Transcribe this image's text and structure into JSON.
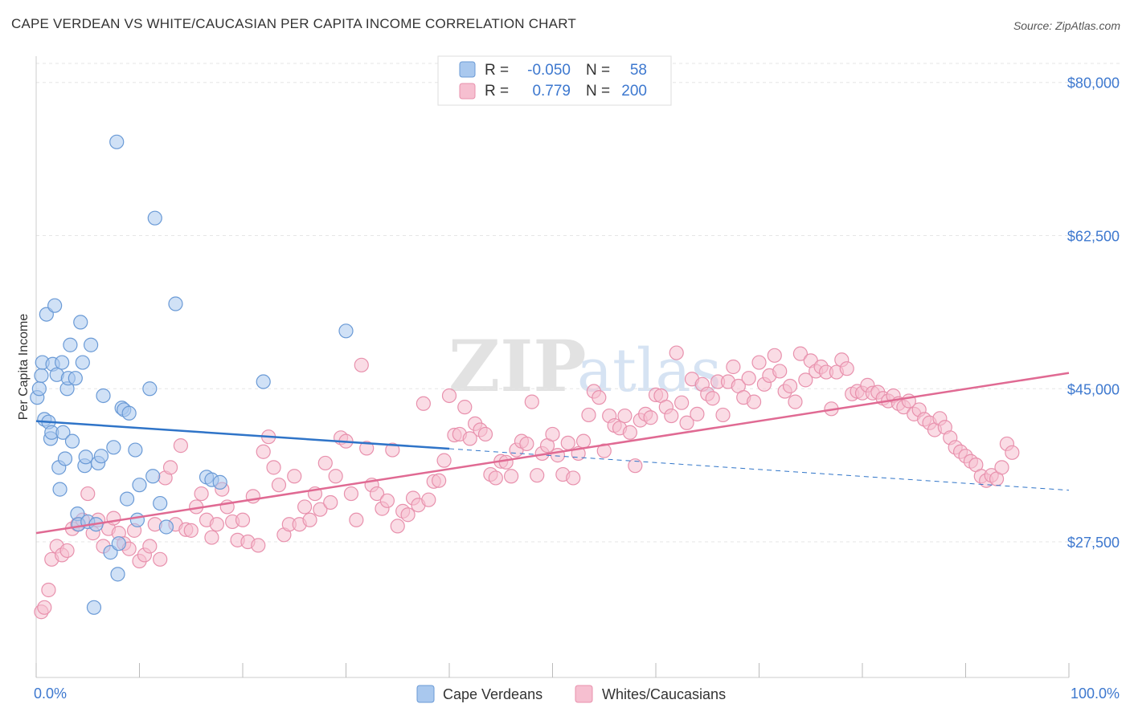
{
  "header": {
    "title": "CAPE VERDEAN VS WHITE/CAUCASIAN PER CAPITA INCOME CORRELATION CHART",
    "source": "Source: ZipAtlas.com"
  },
  "watermark": {
    "zip": "ZIP",
    "atlas": "atlas"
  },
  "colors": {
    "blue_fill": "#a9c8ee",
    "blue_stroke": "#6a9ad6",
    "blue_line": "#2f74c8",
    "pink_fill": "#f6bfd0",
    "pink_stroke": "#e891ad",
    "pink_line": "#e06a93",
    "grid": "#e6e6e6",
    "tick_text": "#3d78cf"
  },
  "legend": {
    "rows": [
      {
        "r_label": "R =",
        "r_value": "-0.050",
        "n_label": "N =",
        "n_value": "58"
      },
      {
        "r_label": "R =",
        "r_value": "0.779",
        "n_label": "N =",
        "n_value": "200"
      }
    ]
  },
  "bottom_legend": [
    "Cape Verdeans",
    "Whites/Caucasians"
  ],
  "chart_data": {
    "type": "scatter",
    "title": "CAPE VERDEAN VS WHITE/CAUCASIAN PER CAPITA INCOME CORRELATION CHART",
    "xlabel": "",
    "ylabel": "Per Capita Income",
    "xlim": [
      0,
      100
    ],
    "ylim": [
      12000,
      83000
    ],
    "x_tick_labels": [
      "0.0%",
      "100.0%"
    ],
    "y_ticks": [
      27500,
      45000,
      62500,
      80000
    ],
    "y_tick_labels": [
      "$27,500",
      "$45,000",
      "$62,500",
      "$80,000"
    ],
    "series": [
      {
        "name": "Cape Verdeans",
        "r": -0.05,
        "n": 58,
        "trend": {
          "x0": 0,
          "y0": 41300,
          "x1": 100,
          "y1": 33400,
          "solid_until": 40
        },
        "points": [
          [
            0.1,
            44000
          ],
          [
            0.3,
            45000
          ],
          [
            0.5,
            46500
          ],
          [
            0.6,
            48000
          ],
          [
            0.8,
            41500
          ],
          [
            1.0,
            53500
          ],
          [
            1.2,
            41200
          ],
          [
            1.4,
            39300
          ],
          [
            1.5,
            40000
          ],
          [
            1.6,
            47800
          ],
          [
            1.8,
            54500
          ],
          [
            2.0,
            46600
          ],
          [
            2.2,
            36000
          ],
          [
            2.3,
            33500
          ],
          [
            2.5,
            48000
          ],
          [
            2.6,
            40000
          ],
          [
            2.8,
            37000
          ],
          [
            3.0,
            45000
          ],
          [
            3.1,
            46200
          ],
          [
            3.3,
            50000
          ],
          [
            3.5,
            39000
          ],
          [
            3.8,
            46200
          ],
          [
            4.0,
            30700
          ],
          [
            4.1,
            29500
          ],
          [
            4.3,
            52600
          ],
          [
            4.5,
            48000
          ],
          [
            4.7,
            36200
          ],
          [
            4.8,
            37200
          ],
          [
            5.0,
            29800
          ],
          [
            5.3,
            50000
          ],
          [
            5.8,
            29500
          ],
          [
            6.0,
            36500
          ],
          [
            6.3,
            37300
          ],
          [
            6.5,
            44200
          ],
          [
            7.2,
            26300
          ],
          [
            7.5,
            38300
          ],
          [
            7.8,
            73200
          ],
          [
            7.9,
            23800
          ],
          [
            8.0,
            27300
          ],
          [
            8.3,
            42800
          ],
          [
            8.5,
            42600
          ],
          [
            8.8,
            32400
          ],
          [
            9.0,
            42200
          ],
          [
            9.8,
            30000
          ],
          [
            10.0,
            34000
          ],
          [
            11.0,
            45000
          ],
          [
            11.3,
            35000
          ],
          [
            11.5,
            64500
          ],
          [
            12.0,
            31900
          ],
          [
            12.6,
            29200
          ],
          [
            13.5,
            54700
          ],
          [
            16.5,
            34900
          ],
          [
            17.0,
            34600
          ],
          [
            17.8,
            34300
          ],
          [
            22.0,
            45800
          ],
          [
            30.0,
            51600
          ],
          [
            5.6,
            20000
          ],
          [
            9.6,
            38000
          ]
        ]
      },
      {
        "name": "Whites/Caucasians",
        "r": 0.779,
        "n": 200,
        "trend": {
          "x0": 0,
          "y0": 28500,
          "x1": 100,
          "y1": 46800
        },
        "points": [
          [
            0.5,
            19500
          ],
          [
            0.8,
            20000
          ],
          [
            1.2,
            22000
          ],
          [
            1.5,
            25500
          ],
          [
            2.0,
            27000
          ],
          [
            2.5,
            26000
          ],
          [
            3.0,
            26500
          ],
          [
            3.5,
            29000
          ],
          [
            4.0,
            29500
          ],
          [
            4.5,
            30000
          ],
          [
            5.0,
            33000
          ],
          [
            5.5,
            28500
          ],
          [
            6.0,
            30000
          ],
          [
            6.5,
            27000
          ],
          [
            7.0,
            29000
          ],
          [
            7.5,
            30200
          ],
          [
            8.0,
            28500
          ],
          [
            8.5,
            27300
          ],
          [
            9.0,
            26700
          ],
          [
            9.5,
            28800
          ],
          [
            10.0,
            25300
          ],
          [
            10.5,
            26000
          ],
          [
            11.0,
            27000
          ],
          [
            11.5,
            29500
          ],
          [
            12.0,
            25500
          ],
          [
            12.5,
            34800
          ],
          [
            13.0,
            36000
          ],
          [
            13.5,
            29500
          ],
          [
            14.0,
            38500
          ],
          [
            14.5,
            28900
          ],
          [
            15.0,
            28800
          ],
          [
            15.5,
            31500
          ],
          [
            16.0,
            33000
          ],
          [
            16.5,
            30000
          ],
          [
            17.0,
            28000
          ],
          [
            17.5,
            29500
          ],
          [
            18.0,
            33500
          ],
          [
            18.5,
            31500
          ],
          [
            19.0,
            29800
          ],
          [
            19.5,
            27700
          ],
          [
            20.0,
            30000
          ],
          [
            20.5,
            27500
          ],
          [
            21.0,
            32700
          ],
          [
            21.5,
            27100
          ],
          [
            22.0,
            37800
          ],
          [
            22.5,
            39500
          ],
          [
            23.0,
            36000
          ],
          [
            23.5,
            34000
          ],
          [
            24.0,
            28300
          ],
          [
            24.5,
            29500
          ],
          [
            25.0,
            35000
          ],
          [
            25.5,
            29500
          ],
          [
            26.0,
            31500
          ],
          [
            26.5,
            30000
          ],
          [
            27.0,
            33000
          ],
          [
            27.5,
            31200
          ],
          [
            28.0,
            36500
          ],
          [
            28.5,
            32000
          ],
          [
            29.0,
            35000
          ],
          [
            29.5,
            39400
          ],
          [
            30.0,
            39000
          ],
          [
            30.5,
            33000
          ],
          [
            31.0,
            30000
          ],
          [
            31.5,
            47700
          ],
          [
            32.0,
            38200
          ],
          [
            32.5,
            34000
          ],
          [
            33.0,
            33000
          ],
          [
            33.5,
            31300
          ],
          [
            34.0,
            32200
          ],
          [
            34.5,
            38000
          ],
          [
            35.0,
            29300
          ],
          [
            35.5,
            31000
          ],
          [
            36.0,
            30600
          ],
          [
            36.5,
            32500
          ],
          [
            37.0,
            31700
          ],
          [
            37.5,
            43300
          ],
          [
            38.0,
            32300
          ],
          [
            38.5,
            34400
          ],
          [
            39.0,
            34500
          ],
          [
            39.5,
            36800
          ],
          [
            40.0,
            44200
          ],
          [
            40.5,
            39700
          ],
          [
            41.0,
            39800
          ],
          [
            41.5,
            42900
          ],
          [
            42.0,
            39300
          ],
          [
            42.5,
            41000
          ],
          [
            43.0,
            40300
          ],
          [
            43.5,
            39800
          ],
          [
            44.0,
            35200
          ],
          [
            44.5,
            34800
          ],
          [
            45.0,
            36700
          ],
          [
            45.5,
            36600
          ],
          [
            46.0,
            35000
          ],
          [
            46.5,
            38000
          ],
          [
            47.0,
            39000
          ],
          [
            47.5,
            38700
          ],
          [
            48.0,
            43500
          ],
          [
            48.5,
            35100
          ],
          [
            49.0,
            37600
          ],
          [
            49.5,
            38500
          ],
          [
            50.0,
            39800
          ],
          [
            50.5,
            37400
          ],
          [
            51.0,
            35200
          ],
          [
            51.5,
            38800
          ],
          [
            52.0,
            34800
          ],
          [
            52.5,
            37600
          ],
          [
            53.0,
            39000
          ],
          [
            53.5,
            42000
          ],
          [
            54.0,
            44700
          ],
          [
            54.5,
            44000
          ],
          [
            55.0,
            37900
          ],
          [
            55.5,
            41900
          ],
          [
            56.0,
            40800
          ],
          [
            56.5,
            40500
          ],
          [
            57.0,
            41900
          ],
          [
            57.5,
            40000
          ],
          [
            58.0,
            36200
          ],
          [
            58.5,
            41400
          ],
          [
            59.0,
            42100
          ],
          [
            59.5,
            41700
          ],
          [
            60.0,
            44300
          ],
          [
            60.5,
            44200
          ],
          [
            61.0,
            42900
          ],
          [
            61.5,
            41900
          ],
          [
            62.0,
            49100
          ],
          [
            62.5,
            43400
          ],
          [
            63.0,
            41100
          ],
          [
            63.5,
            46100
          ],
          [
            64.0,
            42100
          ],
          [
            64.5,
            45500
          ],
          [
            65.0,
            44400
          ],
          [
            65.5,
            43900
          ],
          [
            66.0,
            45800
          ],
          [
            66.5,
            42000
          ],
          [
            67.0,
            45800
          ],
          [
            67.5,
            47500
          ],
          [
            68.0,
            45300
          ],
          [
            68.5,
            44000
          ],
          [
            69.0,
            46200
          ],
          [
            69.5,
            43500
          ],
          [
            70.0,
            48000
          ],
          [
            70.5,
            45500
          ],
          [
            71.0,
            46500
          ],
          [
            71.5,
            48800
          ],
          [
            72.0,
            47000
          ],
          [
            72.5,
            44700
          ],
          [
            73.0,
            45300
          ],
          [
            73.5,
            43500
          ],
          [
            74.0,
            49000
          ],
          [
            74.5,
            46000
          ],
          [
            75.0,
            48200
          ],
          [
            75.5,
            47000
          ],
          [
            76.0,
            47500
          ],
          [
            76.5,
            46900
          ],
          [
            77.0,
            42700
          ],
          [
            77.5,
            46900
          ],
          [
            78.0,
            48300
          ],
          [
            78.5,
            47300
          ],
          [
            79.0,
            44400
          ],
          [
            79.5,
            44700
          ],
          [
            80.0,
            44500
          ],
          [
            80.5,
            45400
          ],
          [
            81.0,
            44500
          ],
          [
            81.5,
            44600
          ],
          [
            82.0,
            43900
          ],
          [
            82.5,
            43600
          ],
          [
            83.0,
            44200
          ],
          [
            83.5,
            43300
          ],
          [
            84.0,
            42900
          ],
          [
            84.5,
            43600
          ],
          [
            85.0,
            42100
          ],
          [
            85.5,
            42600
          ],
          [
            86.0,
            41500
          ],
          [
            86.5,
            41100
          ],
          [
            87.0,
            40300
          ],
          [
            87.5,
            41600
          ],
          [
            88.0,
            40600
          ],
          [
            88.5,
            39400
          ],
          [
            89.0,
            38300
          ],
          [
            89.5,
            37800
          ],
          [
            90.0,
            37300
          ],
          [
            90.5,
            36700
          ],
          [
            91.0,
            36300
          ],
          [
            91.5,
            35000
          ],
          [
            92.0,
            34500
          ],
          [
            92.5,
            35100
          ],
          [
            93.0,
            34700
          ],
          [
            93.5,
            36000
          ],
          [
            94.0,
            38700
          ],
          [
            94.5,
            37700
          ]
        ]
      }
    ]
  }
}
